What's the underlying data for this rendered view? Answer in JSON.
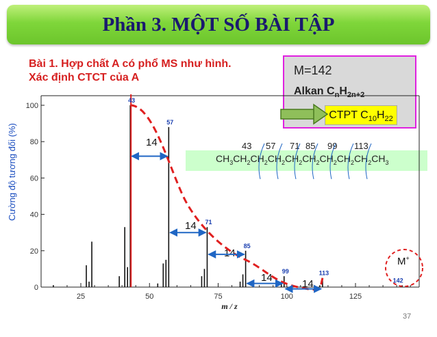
{
  "title": "Phần 3. MỘT SỐ BÀI TẬP",
  "exercise": {
    "line1": "Bài 1. Hợp chất A có phổ MS như hình.",
    "line2": "Xác định CTCT của A"
  },
  "info": {
    "molar_mass": "M=142",
    "alkan_prefix": "Alkan C",
    "alkan_n": "n",
    "alkan_h": "H",
    "alkan_sub": "2n+2",
    "ctpt_prefix": "CTPT C",
    "ctpt_c": "10",
    "ctpt_h": "H",
    "ctpt_h_sub": "22"
  },
  "chain_parts": [
    "CH",
    "3",
    "CH",
    "2",
    "CH",
    "2",
    "CH",
    "2",
    "CH",
    "2",
    "CH",
    "2",
    "CH",
    "2",
    "CH",
    "2",
    "CH",
    "2",
    "CH",
    "3"
  ],
  "chain_fragment_labels": [
    "43",
    "57",
    "71",
    "85",
    "99",
    "113"
  ],
  "diff_label": "14",
  "molecular_ion_label": "M",
  "molecular_ion_charge": "+",
  "page_number": "37",
  "colors": {
    "title_text": "#1a1a6e",
    "exercise_text": "#d62020",
    "curve": "#e02020",
    "arrow": "#1f66c4"
  },
  "chart_data": {
    "type": "bar",
    "ylabel": "Cường độ tương đối (%)",
    "xlabel": "m / z",
    "xlim": [
      10,
      145
    ],
    "ylim": [
      0,
      100
    ],
    "xticks": [
      25,
      50,
      75,
      100,
      125
    ],
    "yticks": [
      0,
      20,
      40,
      60,
      80,
      100
    ],
    "peaks": [
      {
        "mz": 15,
        "value": 1
      },
      {
        "mz": 27,
        "value": 12
      },
      {
        "mz": 28,
        "value": 3
      },
      {
        "mz": 29,
        "value": 25
      },
      {
        "mz": 39,
        "value": 6
      },
      {
        "mz": 41,
        "value": 33
      },
      {
        "mz": 42,
        "value": 11
      },
      {
        "mz": 43,
        "value": 100
      },
      {
        "mz": 53,
        "value": 2
      },
      {
        "mz": 55,
        "value": 13
      },
      {
        "mz": 56,
        "value": 15
      },
      {
        "mz": 57,
        "value": 88
      },
      {
        "mz": 69,
        "value": 6
      },
      {
        "mz": 70,
        "value": 10
      },
      {
        "mz": 71,
        "value": 33
      },
      {
        "mz": 83,
        "value": 3
      },
      {
        "mz": 84,
        "value": 7
      },
      {
        "mz": 85,
        "value": 20
      },
      {
        "mz": 98,
        "value": 2
      },
      {
        "mz": 99,
        "value": 6
      },
      {
        "mz": 112,
        "value": 1
      },
      {
        "mz": 113,
        "value": 5
      },
      {
        "mz": 142,
        "value": 1
      }
    ],
    "peak_labels": [
      {
        "mz": 43,
        "label": "43"
      },
      {
        "mz": 57,
        "label": "57"
      },
      {
        "mz": 71,
        "label": "71"
      },
      {
        "mz": 85,
        "label": "85"
      },
      {
        "mz": 99,
        "label": "99"
      },
      {
        "mz": 113,
        "label": "113"
      },
      {
        "mz": 142,
        "label": "142"
      }
    ]
  }
}
